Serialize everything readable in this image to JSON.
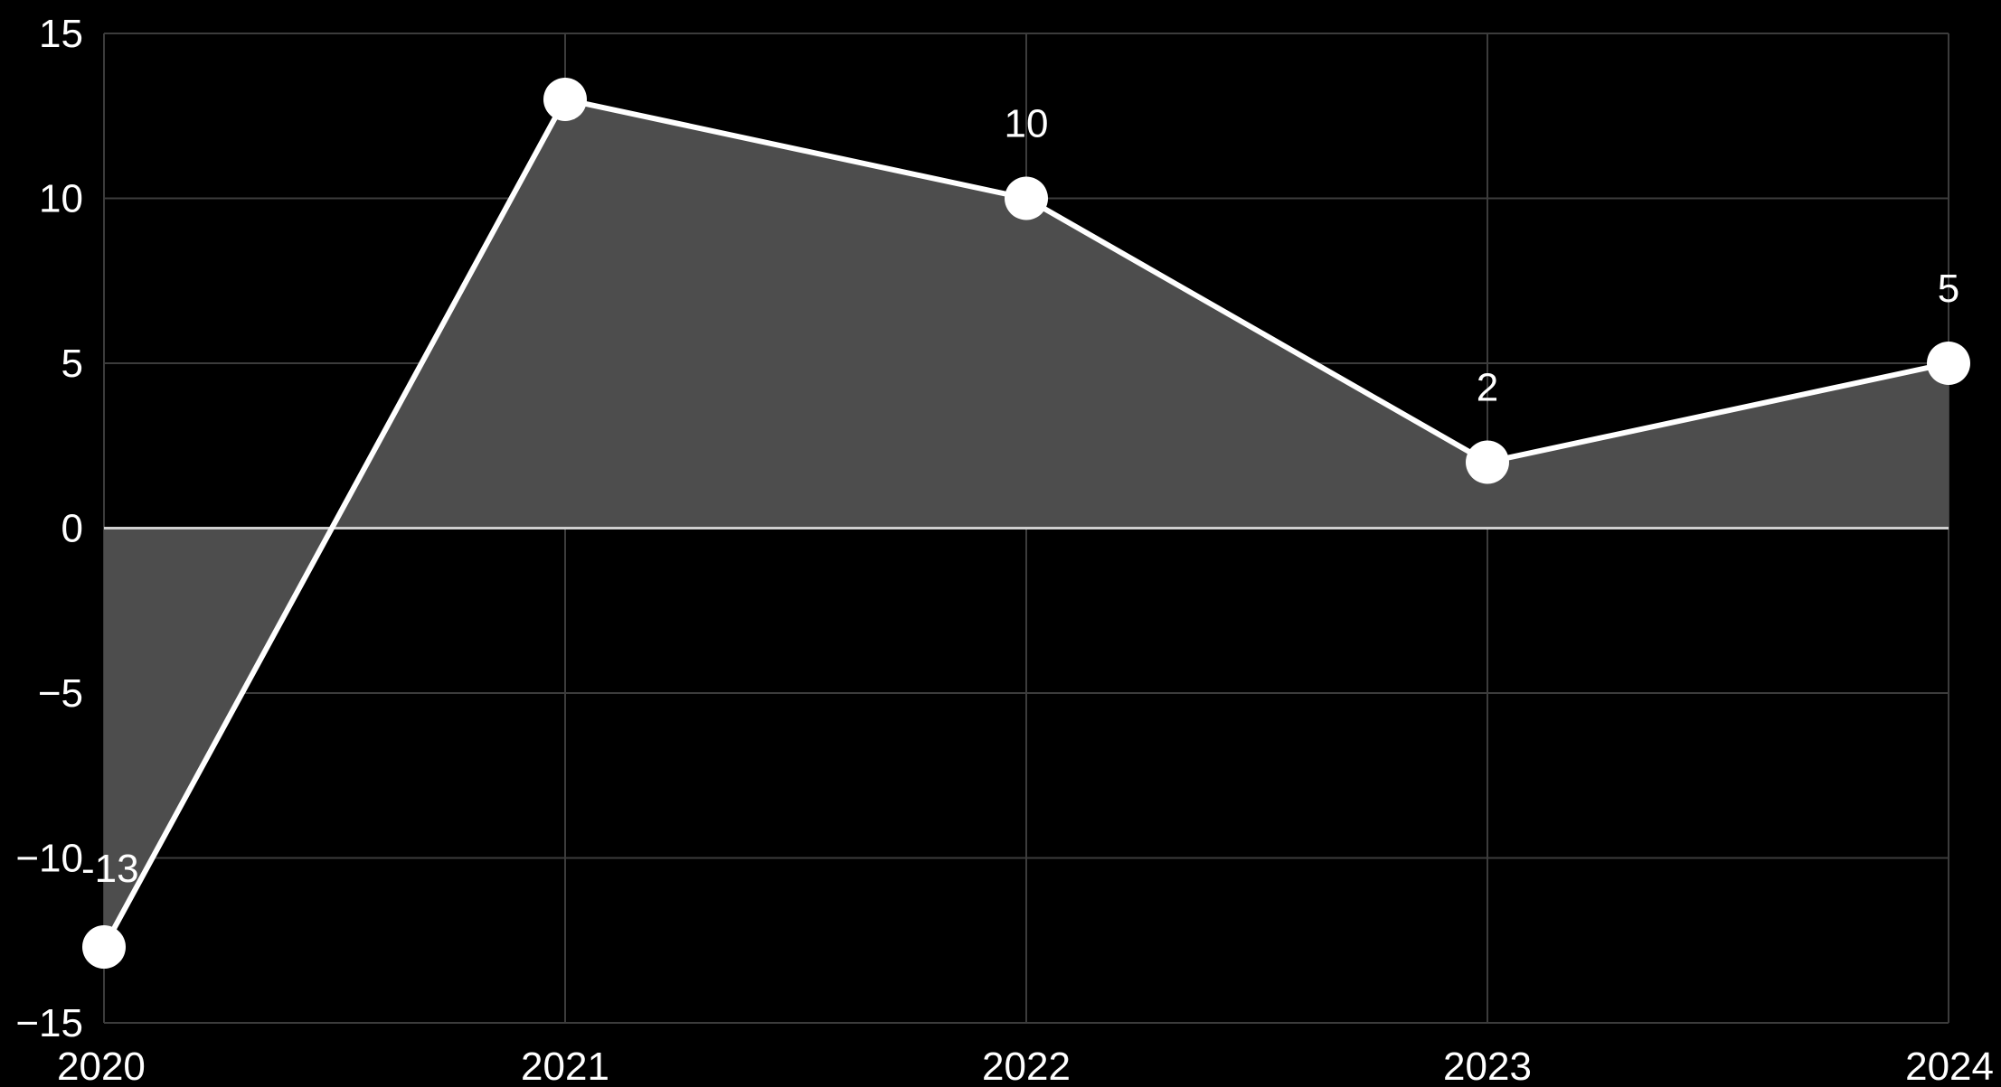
{
  "chart_data": {
    "type": "area",
    "x": [
      "2020",
      "2021",
      "2022",
      "2023",
      "2024"
    ],
    "series": [
      {
        "values": [
          -12.7,
          13,
          10,
          2,
          5
        ]
      }
    ],
    "data_labels": [
      "-13",
      "",
      "10",
      "2",
      "5"
    ],
    "xlabel": "",
    "ylabel": "",
    "xticks": [
      "2020",
      "2021",
      "2022",
      "2023",
      "2024"
    ],
    "yticks": [
      "15",
      "10",
      "5",
      "0",
      "−5",
      "−10",
      "−15"
    ],
    "ytick_values": [
      15,
      10,
      5,
      0,
      -5,
      -10,
      -15
    ],
    "ylim": [
      -15,
      15
    ],
    "grid": true,
    "legend": "none",
    "colors": {
      "background": "#000000",
      "line": "#ffffff",
      "fill": "#4d4d4d",
      "grid": "#3c3c3c",
      "zero_line": "#cfcfcf",
      "text": "#ffffff"
    }
  }
}
